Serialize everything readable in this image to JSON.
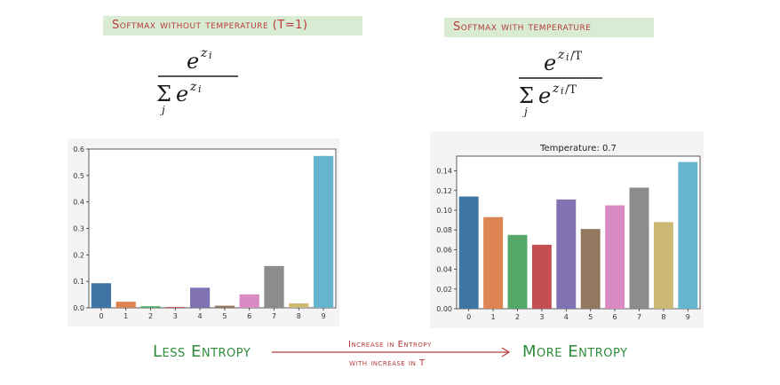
{
  "banners": {
    "left": "Softmax without temperature (T=1)",
    "right": "Softmax with temperature"
  },
  "bottom": {
    "less": "Less Entropy",
    "more": "More Entropy",
    "arrow_top": "Increase in Entropy",
    "arrow_bottom": "with increase in T"
  },
  "chart_data": [
    {
      "type": "bar",
      "title": "",
      "categories": [
        "0",
        "1",
        "2",
        "3",
        "4",
        "5",
        "6",
        "7",
        "8",
        "9"
      ],
      "values": [
        0.093,
        0.023,
        0.006,
        0.003,
        0.076,
        0.008,
        0.051,
        0.158,
        0.017,
        0.574
      ],
      "ylim": [
        0,
        0.6
      ],
      "yticks": [
        0.0,
        0.1,
        0.2,
        0.3,
        0.4,
        0.5,
        0.6
      ],
      "ytick_labels": [
        "0.0",
        "0.1",
        "0.2",
        "0.3",
        "0.4",
        "0.5",
        "0.6"
      ],
      "grid": false
    },
    {
      "type": "bar",
      "title": "Temperature: 0.7",
      "categories": [
        "0",
        "1",
        "2",
        "3",
        "4",
        "5",
        "6",
        "7",
        "8",
        "9"
      ],
      "values": [
        0.114,
        0.093,
        0.075,
        0.065,
        0.111,
        0.081,
        0.105,
        0.123,
        0.088,
        0.149
      ],
      "ylim": [
        0,
        0.155
      ],
      "yticks": [
        0.0,
        0.02,
        0.04,
        0.06,
        0.08,
        0.1,
        0.12,
        0.14
      ],
      "ytick_labels": [
        "0.00",
        "0.02",
        "0.04",
        "0.06",
        "0.08",
        "0.10",
        "0.12",
        "0.14"
      ],
      "grid": false
    }
  ],
  "colors": [
    "#3f75a2",
    "#dd8452",
    "#55a868",
    "#c44e52",
    "#8172b3",
    "#937860",
    "#da8bc3",
    "#8c8c8c",
    "#ccb974",
    "#64b5cd"
  ]
}
